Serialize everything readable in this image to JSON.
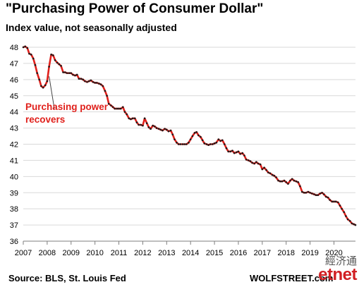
{
  "chart_data": {
    "type": "line",
    "title": "\"Purchasing Power of Consumer Dollar\"",
    "subtitle": "Index value, not seasonally adjusted",
    "xlabel": "",
    "ylabel": "",
    "ylim": [
      36,
      48
    ],
    "xlim": [
      2007,
      2020.9
    ],
    "y_ticks": [
      "36",
      "37",
      "38",
      "39",
      "40",
      "41",
      "42",
      "43",
      "44",
      "45",
      "46",
      "47",
      "48"
    ],
    "x_ticks": [
      "2007",
      "2008",
      "2009",
      "2010",
      "2011",
      "2012",
      "2013",
      "2014",
      "2015",
      "2016",
      "2017",
      "2018",
      "2019",
      "2020"
    ],
    "grid": "horizontal",
    "line_color": "#e0201b",
    "marker_color": "#1a1a1a",
    "annotation": "Purchasing power recovers",
    "series": [
      {
        "x": [
          2007.0,
          2007.08,
          2007.17,
          2007.25,
          2007.33,
          2007.42,
          2007.5,
          2007.58,
          2007.67,
          2007.75,
          2007.83,
          2007.92,
          2008.0,
          2008.08,
          2008.17,
          2008.25,
          2008.33,
          2008.42,
          2008.5,
          2008.58,
          2008.67,
          2008.75,
          2008.83,
          2008.92,
          2009.0,
          2009.08,
          2009.17,
          2009.25,
          2009.33,
          2009.42,
          2009.5,
          2009.58,
          2009.67,
          2009.75,
          2009.83,
          2009.92,
          2010.0,
          2010.08,
          2010.17,
          2010.25,
          2010.33,
          2010.42,
          2010.5,
          2010.58,
          2010.67,
          2010.75,
          2010.83,
          2010.92,
          2011.0,
          2011.08,
          2011.17,
          2011.25,
          2011.33,
          2011.42,
          2011.5,
          2011.58,
          2011.67,
          2011.75,
          2011.83,
          2011.92,
          2012.0,
          2012.08,
          2012.17,
          2012.25,
          2012.33,
          2012.42,
          2012.5,
          2012.58,
          2012.67,
          2012.75,
          2012.83,
          2012.92,
          2013.0,
          2013.08,
          2013.17,
          2013.25,
          2013.33,
          2013.42,
          2013.5,
          2013.58,
          2013.67,
          2013.75,
          2013.83,
          2013.92,
          2014.0,
          2014.08,
          2014.17,
          2014.25,
          2014.33,
          2014.42,
          2014.5,
          2014.58,
          2014.67,
          2014.75,
          2014.83,
          2014.92,
          2015.0,
          2015.08,
          2015.17,
          2015.25,
          2015.33,
          2015.42,
          2015.5,
          2015.58,
          2015.67,
          2015.75,
          2015.83,
          2015.92,
          2016.0,
          2016.08,
          2016.17,
          2016.25,
          2016.33,
          2016.42,
          2016.5,
          2016.58,
          2016.67,
          2016.75,
          2016.83,
          2016.92,
          2017.0,
          2017.08,
          2017.17,
          2017.25,
          2017.33,
          2017.42,
          2017.5,
          2017.58,
          2017.67,
          2017.75,
          2017.83,
          2017.92,
          2018.0,
          2018.08,
          2018.17,
          2018.25,
          2018.33,
          2018.42,
          2018.5,
          2018.58,
          2018.67,
          2018.75,
          2018.83,
          2018.92,
          2019.0,
          2019.08,
          2019.17,
          2019.25,
          2019.33,
          2019.42,
          2019.5,
          2019.58,
          2019.67,
          2019.75,
          2019.83,
          2019.92,
          2020.0,
          2020.08,
          2020.17,
          2020.25,
          2020.33,
          2020.42,
          2020.5,
          2020.58,
          2020.67,
          2020.75,
          2020.83,
          2020.9
        ],
        "y": [
          48.0,
          48.05,
          47.95,
          47.6,
          47.55,
          47.3,
          46.9,
          46.4,
          46.0,
          45.6,
          45.5,
          45.65,
          45.9,
          46.8,
          47.55,
          47.5,
          47.2,
          47.05,
          46.95,
          46.85,
          46.45,
          46.45,
          46.4,
          46.4,
          46.4,
          46.3,
          46.25,
          46.3,
          46.05,
          46.05,
          46.0,
          45.9,
          45.85,
          45.9,
          45.95,
          45.85,
          45.8,
          45.8,
          45.75,
          45.7,
          45.6,
          45.3,
          45.0,
          44.5,
          44.4,
          44.3,
          44.2,
          44.2,
          44.2,
          44.2,
          44.3,
          44.0,
          43.85,
          43.6,
          43.55,
          43.6,
          43.6,
          43.35,
          43.2,
          43.2,
          43.15,
          43.6,
          43.3,
          43.05,
          42.95,
          43.15,
          43.1,
          43.0,
          42.95,
          42.9,
          42.85,
          42.95,
          42.9,
          42.8,
          42.85,
          42.6,
          42.3,
          42.1,
          42.0,
          42.0,
          42.0,
          42.0,
          42.0,
          42.1,
          42.3,
          42.5,
          42.7,
          42.75,
          42.55,
          42.45,
          42.25,
          42.05,
          42.0,
          41.95,
          42.0,
          42.0,
          42.05,
          42.1,
          42.3,
          42.2,
          42.25,
          42.0,
          41.75,
          41.55,
          41.55,
          41.6,
          41.45,
          41.5,
          41.55,
          41.4,
          41.45,
          41.3,
          41.05,
          41.0,
          40.95,
          40.85,
          40.8,
          40.9,
          40.8,
          40.75,
          40.45,
          40.55,
          40.4,
          40.25,
          40.2,
          40.1,
          40.05,
          39.95,
          39.75,
          39.7,
          39.7,
          39.75,
          39.65,
          39.55,
          39.75,
          39.85,
          39.75,
          39.7,
          39.65,
          39.4,
          39.05,
          39.0,
          39.0,
          39.05,
          39.0,
          38.95,
          38.9,
          38.85,
          38.85,
          38.95,
          39.0,
          38.9,
          38.75,
          38.7,
          38.55,
          38.45,
          38.45,
          38.45,
          38.4,
          38.2,
          38.0,
          37.8,
          37.55,
          37.35,
          37.25,
          37.1,
          37.05,
          37.0
        ]
      }
    ]
  },
  "footer": {
    "source": "Source: BLS, St. Louis Fed",
    "credit": "WOLFSTREET.com"
  },
  "watermark": {
    "cjk": "經济通",
    "logo": "etnet"
  }
}
